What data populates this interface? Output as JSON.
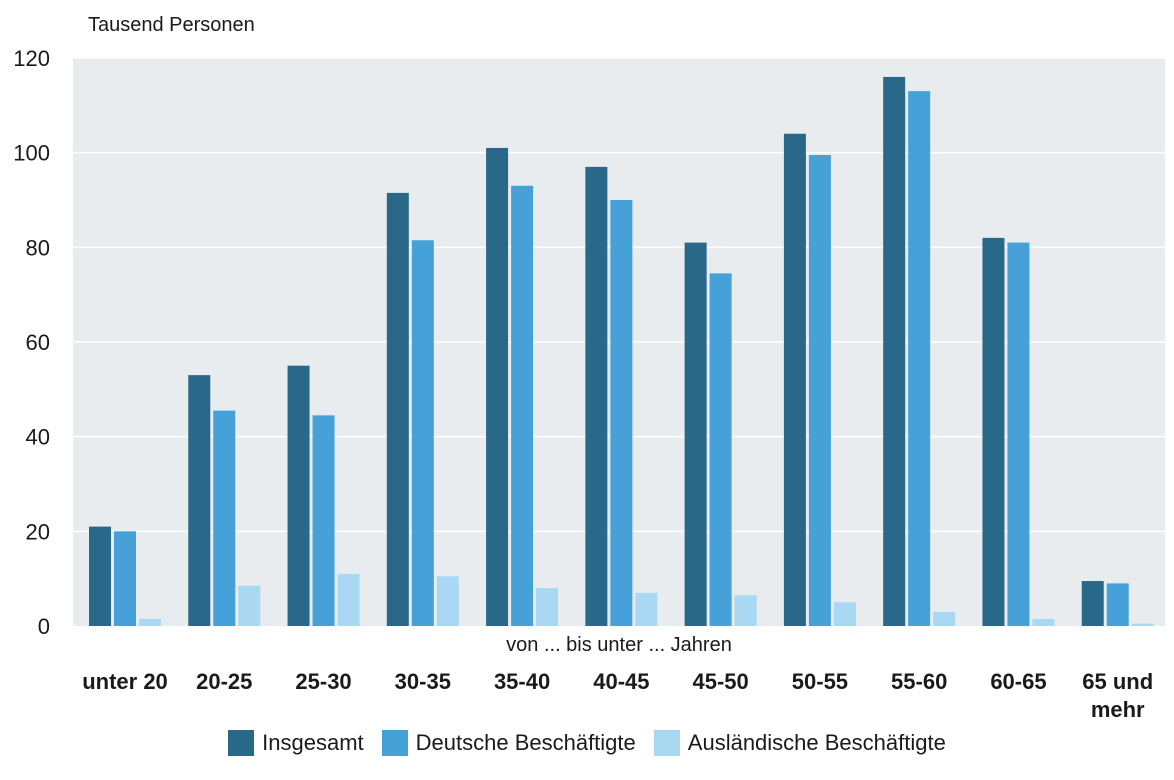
{
  "chart_data": {
    "type": "bar",
    "unit_label": "Tausend Personen",
    "xlabel": "von ... bis unter ... Jahren",
    "categories": [
      "unter 20",
      "20-25",
      "25-30",
      "30-35",
      "35-40",
      "40-45",
      "45-50",
      "50-55",
      "55-60",
      "60-65",
      "65 und mehr"
    ],
    "series": [
      {
        "name": "Insgesamt",
        "color": "#2a6889",
        "values": [
          21,
          53,
          55,
          91.5,
          101,
          97,
          81,
          104,
          116,
          82,
          9.5
        ]
      },
      {
        "name": "Deutsche Beschäftigte",
        "color": "#46a1d9",
        "values": [
          20,
          45.5,
          44.5,
          81.5,
          93,
          90,
          74.5,
          99.5,
          113,
          81,
          9
        ]
      },
      {
        "name": "Ausländische Beschäftigte",
        "color": "#a8d8f2",
        "values": [
          1.5,
          8.5,
          11,
          10.5,
          8,
          7,
          6.5,
          5,
          3,
          1.5,
          0.5
        ]
      }
    ],
    "ylim": [
      0,
      120
    ],
    "yticks": [
      0,
      20,
      40,
      60,
      80,
      100,
      120
    ],
    "grid": true,
    "legend_position": "bottom"
  }
}
